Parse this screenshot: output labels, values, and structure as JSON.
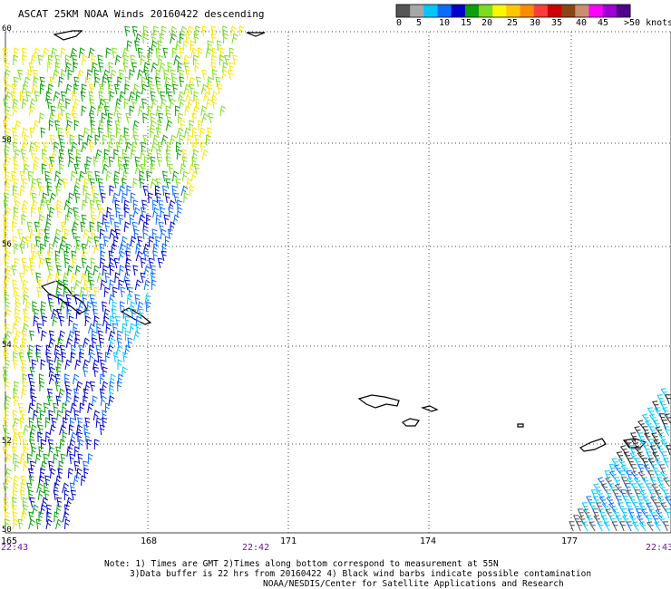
{
  "title": "ASCAT 25KM NOAA Winds 20160422 descending",
  "legend": {
    "colors": [
      "#555555",
      "#a8a8a8",
      "#00c8ff",
      "#0a6cff",
      "#0000cc",
      "#0b9f0b",
      "#7ddc1f",
      "#f8f800",
      "#ffc700",
      "#ff8c00",
      "#ff3c3c",
      "#cc0000",
      "#8b4513",
      "#c88e6e",
      "#ff00ff",
      "#a000d6",
      "#50008a"
    ],
    "labels": [
      "0",
      "5",
      "10",
      "15",
      "20",
      "25",
      "30",
      "35",
      "40",
      "45",
      ">50 knots"
    ]
  },
  "axes": {
    "lat_labels": [
      "60",
      "58",
      "56",
      "54",
      "52",
      "50"
    ],
    "lon_labels": [
      "165",
      "168",
      "171",
      "174",
      "177"
    ]
  },
  "times": {
    "left": "22:43",
    "middle": "22:42",
    "right": "22:43"
  },
  "notes": [
    "Note: 1) Times are GMT 2)Times along bottom correspond to measurement at 55N",
    "3)Data buffer is 22 hrs from 20160422 4) Black wind barbs indicate possible contamination",
    "NOAA/NESDIS/Center for Satellite Applications and Research"
  ]
}
